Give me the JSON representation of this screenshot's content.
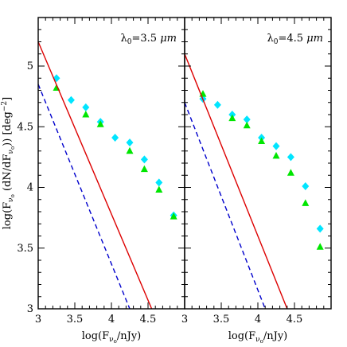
{
  "chart_data": [
    {
      "type": "scatter",
      "panel_label": {
        "prefix": "λ",
        "sub": "0",
        "rest": "=3.5 ",
        "unit": "μm"
      },
      "xlim": [
        3.0,
        5.0
      ],
      "ylim": [
        3.0,
        5.4
      ],
      "xticks": [
        "3",
        "3.5",
        "4",
        "4.5"
      ],
      "xtick_values": [
        3.0,
        3.5,
        4.0,
        4.5
      ],
      "yticks": [
        "3",
        "3.5",
        "4",
        "4.5",
        "5"
      ],
      "ytick_values": [
        3.0,
        3.5,
        4.0,
        4.5,
        5.0
      ],
      "ylabel": {
        "pre": "log(F",
        "sub": "ν",
        "subsub": "o",
        "mid": " (dN/dF",
        "sub2": "ν",
        "subsub2": "o",
        "post": ")) [deg",
        "sup": "−2",
        "end": "]"
      },
      "xlabel": {
        "pre": "log(F",
        "sub": "ν",
        "subsub": "o",
        "post": "/nJy)"
      },
      "series": [
        {
          "marker": "diamond",
          "color": "#00e5ff",
          "x": [
            3.25,
            3.45,
            3.65,
            3.85,
            4.05,
            4.25,
            4.45,
            4.65,
            4.85
          ],
          "y": [
            4.9,
            4.72,
            4.66,
            4.54,
            4.41,
            4.37,
            4.23,
            4.04,
            3.77
          ]
        },
        {
          "marker": "triangle",
          "color": "#00e600",
          "x": [
            3.25,
            3.65,
            3.85,
            4.25,
            4.45,
            4.65,
            4.85
          ],
          "y": [
            4.82,
            4.6,
            4.52,
            4.3,
            4.15,
            3.98,
            3.76
          ]
        },
        {
          "marker": "line",
          "color": "#dd0000",
          "style": "solid",
          "x": [
            3.0,
            4.55
          ],
          "y": [
            5.2,
            3.0
          ]
        },
        {
          "marker": "line",
          "color": "#0000cc",
          "style": "dashed",
          "x": [
            3.0,
            4.25
          ],
          "y": [
            4.85,
            3.0
          ]
        }
      ]
    },
    {
      "type": "scatter",
      "panel_label": {
        "prefix": "λ",
        "sub": "0",
        "rest": "=4.5 ",
        "unit": "μm"
      },
      "xlim": [
        3.0,
        5.0
      ],
      "ylim": [
        3.0,
        5.4
      ],
      "xticks": [
        "3",
        "3.5",
        "4",
        "4.5"
      ],
      "xtick_values": [
        3.0,
        3.5,
        4.0,
        4.5
      ],
      "yticks": [
        "3",
        "3.5",
        "4",
        "4.5",
        "5"
      ],
      "ytick_values": [
        3.0,
        3.5,
        4.0,
        4.5,
        5.0
      ],
      "xlabel": {
        "pre": "log(F",
        "sub": "ν",
        "subsub": "o",
        "post": "/nJy)"
      },
      "series": [
        {
          "marker": "diamond",
          "color": "#00e5ff",
          "x": [
            3.25,
            3.45,
            3.65,
            3.85,
            4.05,
            4.25,
            4.45,
            4.65,
            4.85
          ],
          "y": [
            4.73,
            4.68,
            4.6,
            4.56,
            4.41,
            4.34,
            4.25,
            4.01,
            3.66
          ]
        },
        {
          "marker": "triangle",
          "color": "#00e600",
          "x": [
            3.25,
            3.65,
            3.85,
            4.05,
            4.25,
            4.45,
            4.65,
            4.85
          ],
          "y": [
            4.77,
            4.57,
            4.51,
            4.38,
            4.26,
            4.12,
            3.87,
            3.51
          ]
        },
        {
          "marker": "line",
          "color": "#dd0000",
          "style": "solid",
          "x": [
            3.0,
            4.4
          ],
          "y": [
            5.1,
            3.0
          ]
        },
        {
          "marker": "line",
          "color": "#0000cc",
          "style": "dashed",
          "x": [
            3.0,
            4.1
          ],
          "y": [
            4.7,
            3.0
          ]
        }
      ]
    }
  ]
}
